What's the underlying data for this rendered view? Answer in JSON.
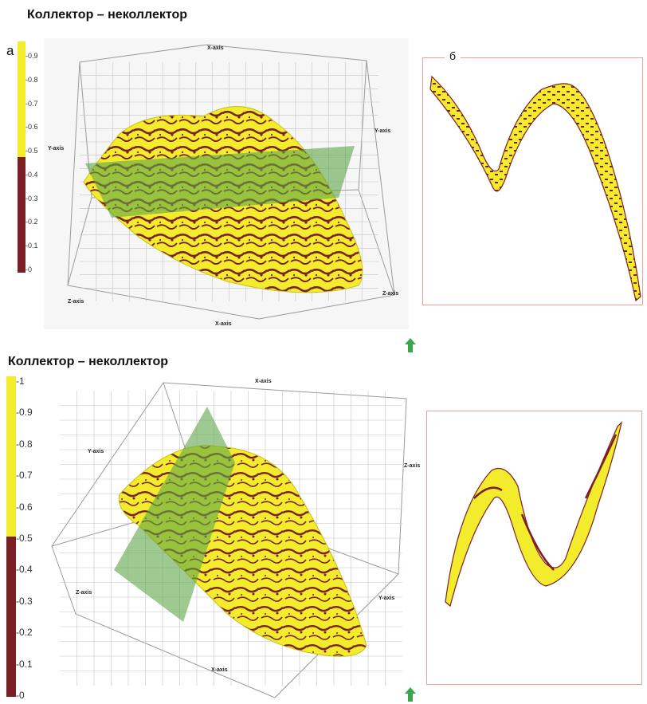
{
  "figure": {
    "panel_a_letter": "а",
    "panel_b_letter": "б",
    "top": {
      "title": "Коллектор – неколлектор",
      "scale_ticks": [
        "0.9",
        "0.8",
        "0.7",
        "0.6",
        "0.5",
        "0.4",
        "0.3",
        "0.2",
        "0.1",
        "0"
      ],
      "axes": {
        "x_top": "X-axis",
        "x_bottom": "X-axis",
        "y_left": "Y-axis",
        "y_right": "Y-axis",
        "z_left": "Z-axis",
        "z_right": "Z-axis"
      }
    },
    "bottom": {
      "title": "Коллектор – неколлектор",
      "scale_ticks": [
        "1",
        "0.9",
        "0.8",
        "0.7",
        "0.6",
        "0.5",
        "0.4",
        "0.3",
        "0.2",
        "0.1",
        "0"
      ],
      "axes": {
        "x_top": "X-axis",
        "x_bottom": "X-axis",
        "y_left": "Y-axis",
        "y_right": "Y-axis",
        "z_left": "Z-axis",
        "z_right": "Z-axis"
      }
    },
    "colors": {
      "collector": "#f2ec2c",
      "non_collector": "#7a1f24",
      "plane": "#5ea64a",
      "grid": "#b8b8b8",
      "frame": "#e8a0a0",
      "arrow": "#3aa84a"
    },
    "icons": [
      "up-arrow-icon",
      "up-arrow-icon"
    ]
  }
}
